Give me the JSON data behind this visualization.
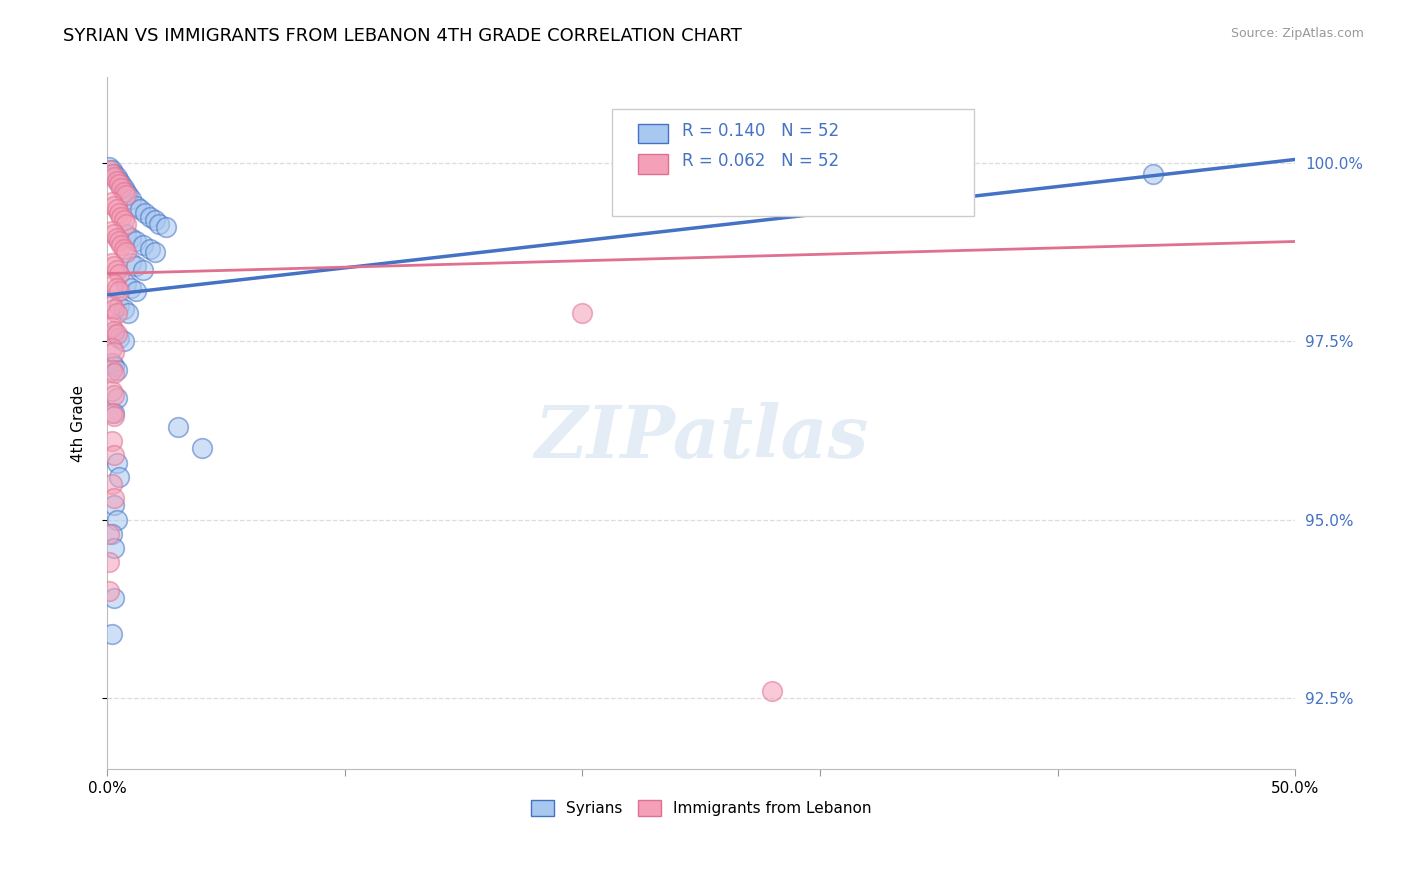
{
  "title": "SYRIAN VS IMMIGRANTS FROM LEBANON 4TH GRADE CORRELATION CHART",
  "source_text": "Source: ZipAtlas.com",
  "ylabel": "4th Grade",
  "x_min": 0.0,
  "x_max": 0.5,
  "y_min": 91.5,
  "y_max": 101.2,
  "x_ticks": [
    0.0,
    0.1,
    0.2,
    0.3,
    0.4,
    0.5
  ],
  "x_tick_labels": [
    "0.0%",
    "",
    "",
    "",
    "",
    "50.0%"
  ],
  "y_ticks": [
    92.5,
    95.0,
    97.5,
    100.0
  ],
  "y_tick_labels": [
    "92.5%",
    "95.0%",
    "97.5%",
    "100.0%"
  ],
  "legend_r1": "R = 0.140",
  "legend_n1": "N = 52",
  "legend_r2": "R = 0.062",
  "legend_n2": "N = 52",
  "legend_label1": "Syrians",
  "legend_label2": "Immigrants from Lebanon",
  "color_blue": "#A8C8F0",
  "color_pink": "#F4A0B8",
  "line_color_blue": "#4472C4",
  "line_color_pink": "#E07090",
  "scatter_blue": [
    [
      0.001,
      99.95
    ],
    [
      0.002,
      99.9
    ],
    [
      0.003,
      99.85
    ],
    [
      0.004,
      99.8
    ],
    [
      0.005,
      99.75
    ],
    [
      0.006,
      99.7
    ],
    [
      0.007,
      99.65
    ],
    [
      0.008,
      99.6
    ],
    [
      0.009,
      99.55
    ],
    [
      0.01,
      99.5
    ],
    [
      0.012,
      99.4
    ],
    [
      0.014,
      99.35
    ],
    [
      0.016,
      99.3
    ],
    [
      0.018,
      99.25
    ],
    [
      0.02,
      99.2
    ],
    [
      0.022,
      99.15
    ],
    [
      0.025,
      99.1
    ],
    [
      0.008,
      99.0
    ],
    [
      0.01,
      98.95
    ],
    [
      0.012,
      98.9
    ],
    [
      0.015,
      98.85
    ],
    [
      0.018,
      98.8
    ],
    [
      0.02,
      98.75
    ],
    [
      0.01,
      98.6
    ],
    [
      0.012,
      98.55
    ],
    [
      0.015,
      98.5
    ],
    [
      0.008,
      98.3
    ],
    [
      0.01,
      98.25
    ],
    [
      0.012,
      98.2
    ],
    [
      0.005,
      98.0
    ],
    [
      0.007,
      97.95
    ],
    [
      0.009,
      97.9
    ],
    [
      0.003,
      97.6
    ],
    [
      0.005,
      97.55
    ],
    [
      0.007,
      97.5
    ],
    [
      0.002,
      97.2
    ],
    [
      0.003,
      97.15
    ],
    [
      0.004,
      97.1
    ],
    [
      0.004,
      96.7
    ],
    [
      0.003,
      96.5
    ],
    [
      0.004,
      95.8
    ],
    [
      0.005,
      95.6
    ],
    [
      0.003,
      95.2
    ],
    [
      0.004,
      95.0
    ],
    [
      0.002,
      94.8
    ],
    [
      0.003,
      94.6
    ],
    [
      0.003,
      93.9
    ],
    [
      0.002,
      93.4
    ],
    [
      0.03,
      96.3
    ],
    [
      0.04,
      96.0
    ],
    [
      0.29,
      99.7
    ],
    [
      0.44,
      99.85
    ]
  ],
  "scatter_pink": [
    [
      0.001,
      99.9
    ],
    [
      0.002,
      99.85
    ],
    [
      0.003,
      99.8
    ],
    [
      0.004,
      99.75
    ],
    [
      0.005,
      99.7
    ],
    [
      0.006,
      99.65
    ],
    [
      0.007,
      99.6
    ],
    [
      0.008,
      99.55
    ],
    [
      0.002,
      99.45
    ],
    [
      0.003,
      99.4
    ],
    [
      0.004,
      99.35
    ],
    [
      0.005,
      99.3
    ],
    [
      0.006,
      99.25
    ],
    [
      0.007,
      99.2
    ],
    [
      0.008,
      99.15
    ],
    [
      0.002,
      99.05
    ],
    [
      0.003,
      99.0
    ],
    [
      0.004,
      98.95
    ],
    [
      0.005,
      98.9
    ],
    [
      0.006,
      98.85
    ],
    [
      0.007,
      98.8
    ],
    [
      0.008,
      98.75
    ],
    [
      0.002,
      98.6
    ],
    [
      0.003,
      98.55
    ],
    [
      0.004,
      98.5
    ],
    [
      0.005,
      98.45
    ],
    [
      0.003,
      98.3
    ],
    [
      0.004,
      98.25
    ],
    [
      0.005,
      98.2
    ],
    [
      0.002,
      98.0
    ],
    [
      0.003,
      97.95
    ],
    [
      0.004,
      97.9
    ],
    [
      0.002,
      97.7
    ],
    [
      0.003,
      97.65
    ],
    [
      0.004,
      97.6
    ],
    [
      0.002,
      97.4
    ],
    [
      0.003,
      97.35
    ],
    [
      0.002,
      97.1
    ],
    [
      0.003,
      97.05
    ],
    [
      0.002,
      96.8
    ],
    [
      0.003,
      96.75
    ],
    [
      0.002,
      96.5
    ],
    [
      0.003,
      96.45
    ],
    [
      0.002,
      96.1
    ],
    [
      0.003,
      95.9
    ],
    [
      0.002,
      95.5
    ],
    [
      0.003,
      95.3
    ],
    [
      0.001,
      94.8
    ],
    [
      0.001,
      94.4
    ],
    [
      0.001,
      94.0
    ],
    [
      0.2,
      97.9
    ],
    [
      0.28,
      92.6
    ]
  ],
  "blue_line_x0": 0.0,
  "blue_line_y0": 98.15,
  "blue_line_x1": 0.5,
  "blue_line_y1": 100.05,
  "pink_line_x0": 0.0,
  "pink_line_y0": 98.45,
  "pink_line_x1": 0.5,
  "pink_line_y1": 98.9,
  "watermark_text": "ZIPatlas",
  "grid_color": "#DDDDDD",
  "background_color": "#FFFFFF"
}
